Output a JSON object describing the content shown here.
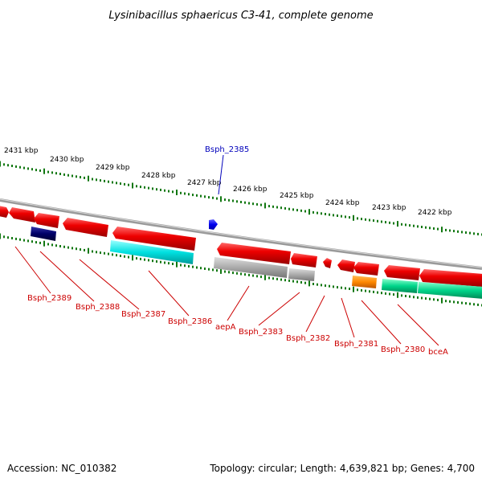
{
  "title": "Lysinibacillus sphaericus C3-41, complete genome",
  "footer": {
    "accession": "Accession: NC_010382",
    "topology": "Topology: circular; Length: 4,639,821 bp; Genes: 4,700"
  },
  "kbp_labels": [
    "2431 kbp",
    "2430 kbp",
    "2429 kbp",
    "2428 kbp",
    "2427 kbp",
    "2426 kbp",
    "2425 kbp",
    "2424 kbp",
    "2423 kbp",
    "2422 kbp"
  ],
  "gene_labels": {
    "top": "Bsph_2385",
    "bottom": [
      "Bsph_2389",
      "Bsph_2388",
      "Bsph_2387",
      "Bsph_2386",
      "aepA",
      "Bsph_2383",
      "Bsph_2382",
      "Bsph_2381",
      "Bsph_2380",
      "bceA"
    ]
  },
  "colors": {
    "top_label": "#0000bb",
    "bottom_label": "#cc0000",
    "gene_red": "#ee0000",
    "gene_navy": "#000066",
    "gene_cyan": "#00e5e5",
    "gene_gray": "#a8a8a8",
    "gene_orange": "#ff8800",
    "gene_teal": "#00d58a",
    "tick_green": "#117711",
    "backbone": "#888888"
  }
}
